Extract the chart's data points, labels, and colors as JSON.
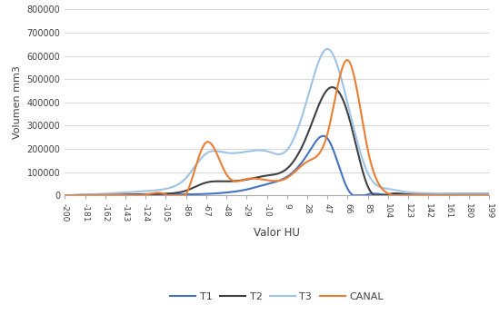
{
  "x_values": [
    -200,
    -181,
    -162,
    -143,
    -124,
    -105,
    -86,
    -67,
    -48,
    -29,
    -10,
    9,
    28,
    47,
    66,
    85,
    104,
    123,
    142,
    161,
    180,
    199
  ],
  "T1": [
    0,
    1000,
    2000,
    2500,
    3000,
    3500,
    4000,
    6000,
    12000,
    25000,
    48000,
    80000,
    175000,
    245000,
    28000,
    4000,
    1500,
    4000,
    6000,
    6000,
    6000,
    6000
  ],
  "T2": [
    0,
    1000,
    2000,
    3000,
    4000,
    7000,
    20000,
    55000,
    60000,
    68000,
    85000,
    115000,
    260000,
    455000,
    355000,
    38000,
    4000,
    4000,
    6000,
    6000,
    6000,
    6000
  ],
  "T3": [
    0,
    3000,
    7000,
    12000,
    18000,
    28000,
    75000,
    180000,
    183000,
    188000,
    190000,
    195000,
    415000,
    630000,
    395000,
    95000,
    28000,
    13000,
    9000,
    7000,
    7000,
    7000
  ],
  "CANAL": [
    0,
    1000,
    2000,
    2500,
    3000,
    3500,
    3500,
    228000,
    90000,
    70000,
    65000,
    75000,
    145000,
    265000,
    582000,
    195000,
    8000,
    1500,
    1500,
    1500,
    1500,
    1500
  ],
  "colors": {
    "T1": "#4472c4",
    "T2": "#404040",
    "T3": "#9dc3e6",
    "CANAL": "#ed7d31"
  },
  "ylabel": "Volumen mm3",
  "xlabel": "Valor HU",
  "ylim": [
    0,
    800000
  ],
  "yticks": [
    0,
    100000,
    200000,
    300000,
    400000,
    500000,
    600000,
    700000,
    800000
  ],
  "background_color": "#ffffff",
  "grid_color": "#d9d9d9",
  "linewidth": 1.5
}
